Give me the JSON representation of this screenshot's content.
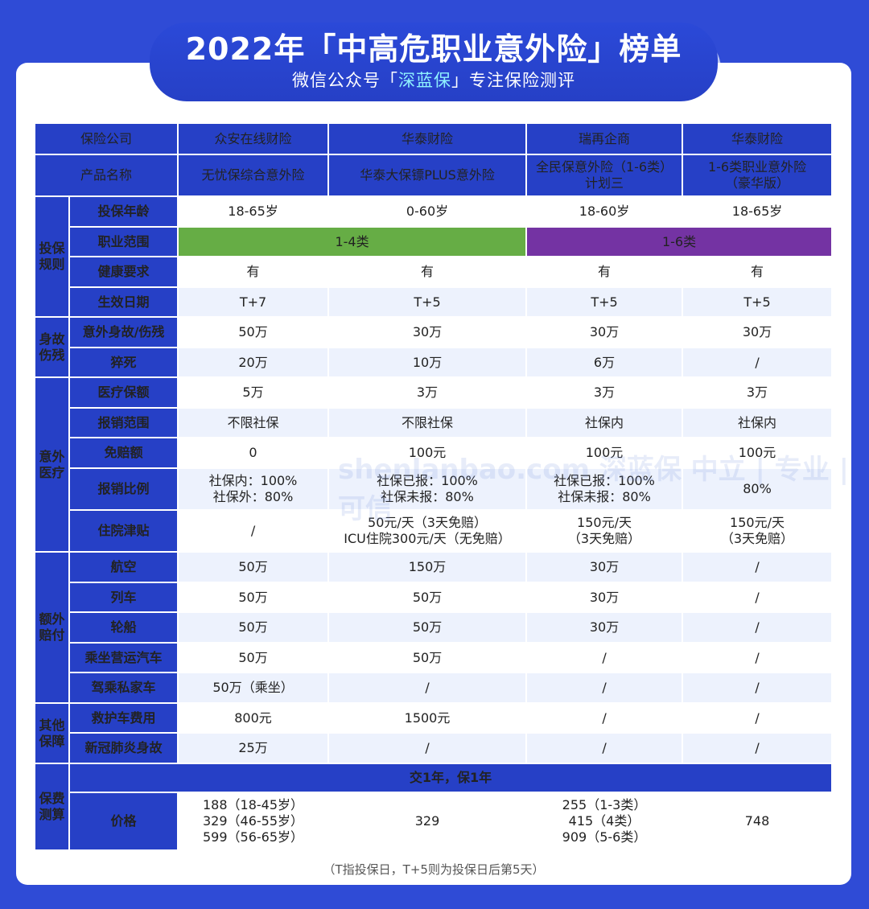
{
  "header": {
    "title": "2022年「中高危职业意外险」榜单",
    "subtitle_pre": "微信公众号「",
    "subtitle_brand": "深蓝保",
    "subtitle_post": "」专注保险测评"
  },
  "columns": {
    "company_label": "保险公司",
    "product_label": "产品名称",
    "companies": [
      "众安在线财险",
      "华泰财险",
      "瑞再企商",
      "华泰财险"
    ],
    "products": [
      [
        "无忧保综合意外险"
      ],
      [
        "华泰大保镖PLUS意外险"
      ],
      [
        "全民保意外险（1-6类）",
        "计划三"
      ],
      [
        "1-6类职业意外险",
        "（豪华版）"
      ]
    ]
  },
  "categories": {
    "rules": [
      "投保",
      "规则"
    ],
    "death": [
      "身故",
      "伤残"
    ],
    "medical": [
      "意外",
      "医疗"
    ],
    "extra": [
      "额外",
      "赔付"
    ],
    "other": [
      "其他",
      "保障"
    ],
    "premium": [
      "保费",
      "测算"
    ]
  },
  "rows": {
    "age": {
      "label": "投保年龄",
      "values": [
        "18-65岁",
        "0-60岁",
        "18-60岁",
        "18-65岁"
      ]
    },
    "occupation": {
      "label": "职业范围",
      "group_a": "1-4类",
      "group_b": "1-6类"
    },
    "health": {
      "label": "健康要求",
      "values": [
        "有",
        "有",
        "有",
        "有"
      ]
    },
    "effective": {
      "label": "生效日期",
      "values": [
        "T+7",
        "T+5",
        "T+5",
        "T+5"
      ]
    },
    "death": {
      "label": "意外身故/伤残",
      "values": [
        "50万",
        "30万",
        "30万",
        "30万"
      ]
    },
    "sudden": {
      "label": "猝死",
      "values": [
        "20万",
        "10万",
        "6万",
        "/"
      ]
    },
    "medical_amount": {
      "label": "医疗保额",
      "values": [
        "5万",
        "3万",
        "3万",
        "3万"
      ]
    },
    "scope": {
      "label": "报销范围",
      "values": [
        "不限社保",
        "不限社保",
        "社保内",
        "社保内"
      ]
    },
    "deductible": {
      "label": "免赔额",
      "values": [
        "0",
        "100元",
        "100元",
        "100元"
      ]
    },
    "ratio": {
      "label": "报销比例",
      "values": [
        [
          "社保内：100%",
          "社保外：80%"
        ],
        [
          "社保已报：100%",
          "社保未报：80%"
        ],
        [
          "社保已报：100%",
          "社保未报：80%"
        ],
        [
          "80%"
        ]
      ]
    },
    "hospital": {
      "label": "住院津贴",
      "values": [
        [
          "/"
        ],
        [
          "50元/天（3天免赔）",
          "ICU住院300元/天（无免赔）"
        ],
        [
          "150元/天",
          "（3天免赔）"
        ],
        [
          "150元/天",
          "（3天免赔）"
        ]
      ]
    },
    "air": {
      "label": "航空",
      "values": [
        "50万",
        "150万",
        "30万",
        "/"
      ]
    },
    "train": {
      "label": "列车",
      "values": [
        "50万",
        "50万",
        "30万",
        "/"
      ]
    },
    "ship": {
      "label": "轮船",
      "values": [
        "50万",
        "50万",
        "30万",
        "/"
      ]
    },
    "bus": {
      "label": "乘坐营运汽车",
      "values": [
        "50万",
        "50万",
        "/",
        "/"
      ]
    },
    "car": {
      "label": "驾乘私家车",
      "values": [
        "50万（乘坐）",
        "/",
        "/",
        "/"
      ]
    },
    "ambulance": {
      "label": "救护车费用",
      "values": [
        "800元",
        "1500元",
        "/",
        "/"
      ]
    },
    "covid": {
      "label": "新冠肺炎身故",
      "values": [
        "25万",
        "/",
        "/",
        "/"
      ]
    },
    "term": {
      "note": "交1年，保1年"
    },
    "price": {
      "label": "价格",
      "values": [
        [
          "188（18-45岁）",
          "329（46-55岁）",
          "599（56-65岁）"
        ],
        [
          "329"
        ],
        [
          "255（1-3类）",
          "415（4类）",
          "909（5-6类）"
        ],
        [
          "748"
        ]
      ]
    }
  },
  "footnote": "（T指投保日，T+5则为投保日后第5天）",
  "watermark": "shenlanbao.com 深蓝保 中立 | 专业 | 可信",
  "colors": {
    "background": "#2f4bd6",
    "header_cell": "#2640c6",
    "category_text": "#ffd84a",
    "occupation_1_4": "#66ad45",
    "occupation_1_6": "#7433a3",
    "highlight": "#e4312b",
    "brand_highlight": "#8ff2ff"
  }
}
